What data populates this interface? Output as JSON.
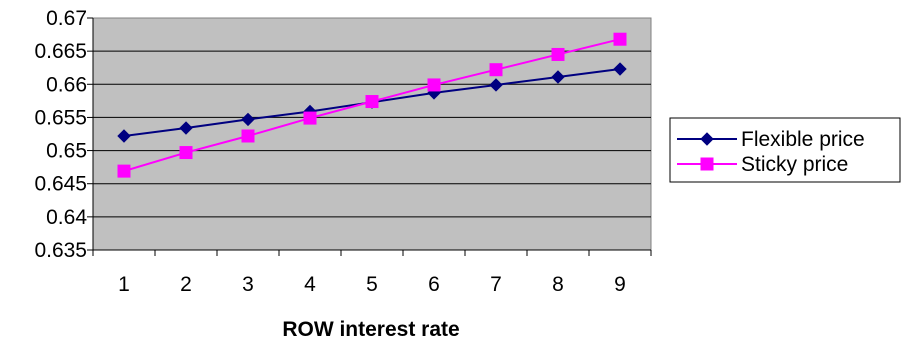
{
  "chart_data": {
    "type": "line",
    "title": "",
    "xlabel": "ROW interest rate",
    "ylabel": "",
    "x": [
      1,
      2,
      3,
      4,
      5,
      6,
      7,
      8,
      9
    ],
    "x_tick_labels": [
      "1",
      "2",
      "3",
      "4",
      "5",
      "6",
      "7",
      "8",
      "9"
    ],
    "ylim": [
      0.635,
      0.67
    ],
    "y_ticks": [
      0.635,
      0.64,
      0.645,
      0.65,
      0.655,
      0.66,
      0.665,
      0.67
    ],
    "y_tick_labels": [
      "0.635",
      "0.64",
      "0.645",
      "0.65",
      "0.655",
      "0.66",
      "0.665",
      "0.67"
    ],
    "grid": true,
    "plot_background": "#c0c0c0",
    "legend_position": "right",
    "series": [
      {
        "name": "Flexible price",
        "color": "#000080",
        "marker": "diamond",
        "values": [
          0.6522,
          0.6534,
          0.6547,
          0.6559,
          0.6573,
          0.6587,
          0.6599,
          0.6611,
          0.6623
        ]
      },
      {
        "name": "Sticky price",
        "color": "#ff00ff",
        "marker": "square",
        "values": [
          0.6469,
          0.6497,
          0.6522,
          0.6549,
          0.6574,
          0.6599,
          0.6622,
          0.6645,
          0.6668
        ]
      }
    ]
  }
}
